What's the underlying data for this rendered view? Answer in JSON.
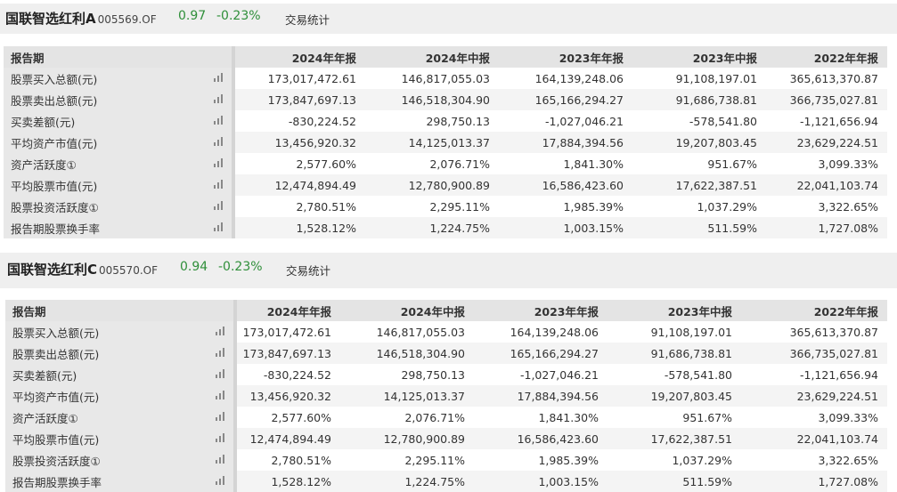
{
  "headers": [
    "报告期",
    "2024年年报",
    "2024年中报",
    "2023年年报",
    "2023年中报",
    "2022年年报"
  ],
  "row_labels": [
    "股票买入总额(元)",
    "股票卖出总额(元)",
    "买卖差额(元)",
    "平均资产市值(元)",
    "资产活跃度①",
    "平均股票市值(元)",
    "股票投资活跃度①",
    "报告期股票换手率"
  ],
  "icon_name": "bar-chart-icon",
  "accent_color": "#2f8f3a",
  "funds": [
    {
      "name": "国联智选红利A",
      "code": "005569.OF",
      "nav": "0.97",
      "change": "-0.23%",
      "trade_stats": "交易统计",
      "rows": [
        [
          "173,017,472.61",
          "146,817,055.03",
          "164,139,248.06",
          "91,108,197.01",
          "365,613,370.87"
        ],
        [
          "173,847,697.13",
          "146,518,304.90",
          "165,166,294.27",
          "91,686,738.81",
          "366,735,027.81"
        ],
        [
          "-830,224.52",
          "298,750.13",
          "-1,027,046.21",
          "-578,541.80",
          "-1,121,656.94"
        ],
        [
          "13,456,920.32",
          "14,125,013.37",
          "17,884,394.56",
          "19,207,803.45",
          "23,629,224.51"
        ],
        [
          "2,577.60%",
          "2,076.71%",
          "1,841.30%",
          "951.67%",
          "3,099.33%"
        ],
        [
          "12,474,894.49",
          "12,780,900.89",
          "16,586,423.60",
          "17,622,387.51",
          "22,041,103.74"
        ],
        [
          "2,780.51%",
          "2,295.11%",
          "1,985.39%",
          "1,037.29%",
          "3,322.65%"
        ],
        [
          "1,528.12%",
          "1,224.75%",
          "1,003.15%",
          "511.59%",
          "1,727.08%"
        ]
      ]
    },
    {
      "name": "国联智选红利C",
      "code": "005570.OF",
      "nav": "0.94",
      "change": "-0.23%",
      "trade_stats": "交易统计",
      "rows": [
        [
          "173,017,472.61",
          "146,817,055.03",
          "164,139,248.06",
          "91,108,197.01",
          "365,613,370.87"
        ],
        [
          "173,847,697.13",
          "146,518,304.90",
          "165,166,294.27",
          "91,686,738.81",
          "366,735,027.81"
        ],
        [
          "-830,224.52",
          "298,750.13",
          "-1,027,046.21",
          "-578,541.80",
          "-1,121,656.94"
        ],
        [
          "13,456,920.32",
          "14,125,013.37",
          "17,884,394.56",
          "19,207,803.45",
          "23,629,224.51"
        ],
        [
          "2,577.60%",
          "2,076.71%",
          "1,841.30%",
          "951.67%",
          "3,099.33%"
        ],
        [
          "12,474,894.49",
          "12,780,900.89",
          "16,586,423.60",
          "17,622,387.51",
          "22,041,103.74"
        ],
        [
          "2,780.51%",
          "2,295.11%",
          "1,985.39%",
          "1,037.29%",
          "3,322.65%"
        ],
        [
          "1,528.12%",
          "1,224.75%",
          "1,003.15%",
          "511.59%",
          "1,727.08%"
        ]
      ]
    }
  ]
}
